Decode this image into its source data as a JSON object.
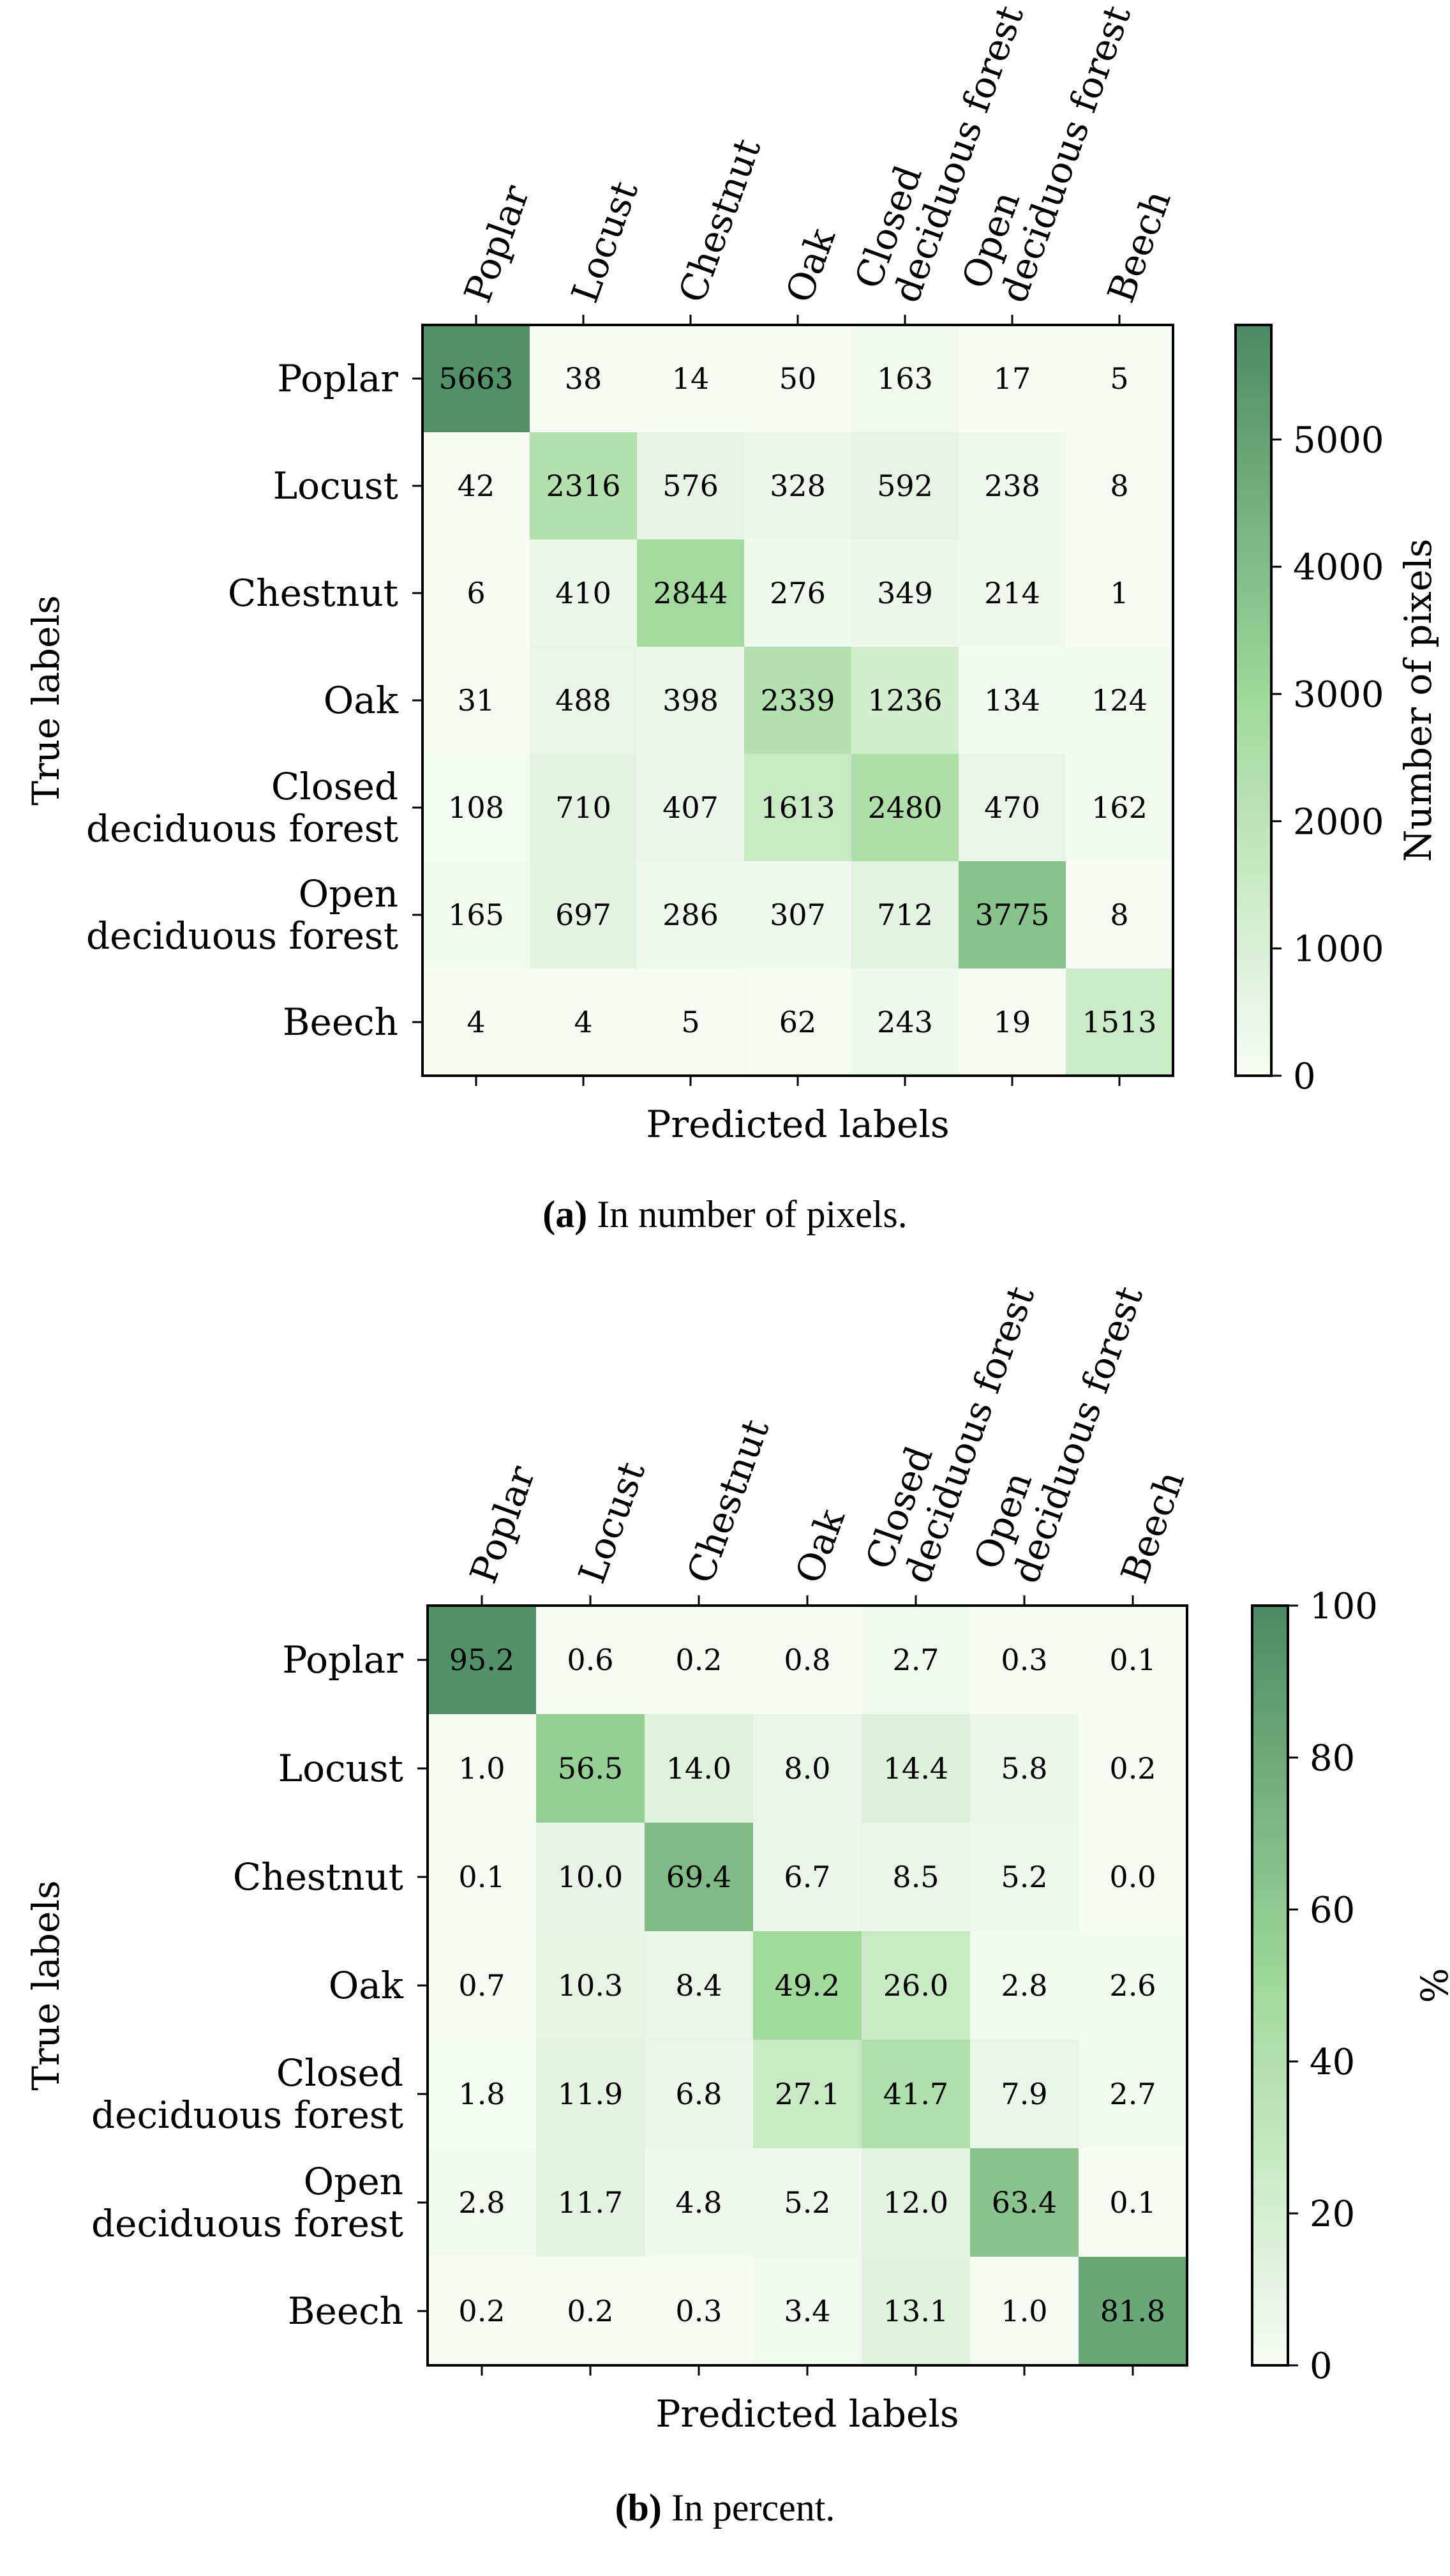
{
  "chart_data": [
    {
      "type": "heatmap",
      "caption_label": "(a)",
      "caption_text": "In number of pixels.",
      "xlabel": "Predicted labels",
      "ylabel": "True labels",
      "column_labels": [
        [
          "Poplar"
        ],
        [
          "Locust"
        ],
        [
          "Chestnut"
        ],
        [
          "Oak"
        ],
        [
          "Closed",
          "deciduous forest"
        ],
        [
          "Open",
          "deciduous forest"
        ],
        [
          "Beech"
        ]
      ],
      "row_labels": [
        [
          "Poplar"
        ],
        [
          "Locust"
        ],
        [
          "Chestnut"
        ],
        [
          "Oak"
        ],
        [
          "Closed",
          "deciduous forest"
        ],
        [
          "Open",
          "deciduous forest"
        ],
        [
          "Beech"
        ]
      ],
      "values": [
        [
          5663,
          38,
          14,
          50,
          163,
          17,
          5
        ],
        [
          42,
          2316,
          576,
          328,
          592,
          238,
          8
        ],
        [
          6,
          410,
          2844,
          276,
          349,
          214,
          1
        ],
        [
          31,
          488,
          398,
          2339,
          1236,
          134,
          124
        ],
        [
          108,
          710,
          407,
          1613,
          2480,
          470,
          162
        ],
        [
          165,
          697,
          286,
          307,
          712,
          3775,
          8
        ],
        [
          4,
          4,
          5,
          62,
          243,
          19,
          1513
        ]
      ],
      "cell_text": [
        [
          "5663",
          "38",
          "14",
          "50",
          "163",
          "17",
          "5"
        ],
        [
          "42",
          "2316",
          "576",
          "328",
          "592",
          "238",
          "8"
        ],
        [
          "6",
          "410",
          "2844",
          "276",
          "349",
          "214",
          "1"
        ],
        [
          "31",
          "488",
          "398",
          "2339",
          "1236",
          "134",
          "124"
        ],
        [
          "108",
          "710",
          "407",
          "1613",
          "2480",
          "470",
          "162"
        ],
        [
          "165",
          "697",
          "286",
          "307",
          "712",
          "3775",
          "8"
        ],
        [
          "4",
          "4",
          "5",
          "62",
          "243",
          "19",
          "1513"
        ]
      ],
      "colorbar": {
        "label": "Number of pixels",
        "min": 0,
        "max": 5900,
        "ticks": [
          0,
          1000,
          2000,
          3000,
          4000,
          5000
        ],
        "tick_labels": [
          "0",
          "1000",
          "2000",
          "3000",
          "4000",
          "5000"
        ]
      }
    },
    {
      "type": "heatmap",
      "caption_label": "(b)",
      "caption_text": "In percent.",
      "xlabel": "Predicted labels",
      "ylabel": "True labels",
      "column_labels": [
        [
          "Poplar"
        ],
        [
          "Locust"
        ],
        [
          "Chestnut"
        ],
        [
          "Oak"
        ],
        [
          "Closed",
          "deciduous forest"
        ],
        [
          "Open",
          "deciduous forest"
        ],
        [
          "Beech"
        ]
      ],
      "row_labels": [
        [
          "Poplar"
        ],
        [
          "Locust"
        ],
        [
          "Chestnut"
        ],
        [
          "Oak"
        ],
        [
          "Closed",
          "deciduous forest"
        ],
        [
          "Open",
          "deciduous forest"
        ],
        [
          "Beech"
        ]
      ],
      "values": [
        [
          95.2,
          0.6,
          0.2,
          0.8,
          2.7,
          0.3,
          0.1
        ],
        [
          1.0,
          56.5,
          14.0,
          8.0,
          14.4,
          5.8,
          0.2
        ],
        [
          0.1,
          10.0,
          69.4,
          6.7,
          8.5,
          5.2,
          0.0
        ],
        [
          0.7,
          10.3,
          8.4,
          49.2,
          26.0,
          2.8,
          2.6
        ],
        [
          1.8,
          11.9,
          6.8,
          27.1,
          41.7,
          7.9,
          2.7
        ],
        [
          2.8,
          11.7,
          4.8,
          5.2,
          12.0,
          63.4,
          0.1
        ],
        [
          0.2,
          0.2,
          0.3,
          3.4,
          13.1,
          1.0,
          81.8
        ]
      ],
      "cell_text": [
        [
          "95.2",
          "0.6",
          "0.2",
          "0.8",
          "2.7",
          "0.3",
          "0.1"
        ],
        [
          "1.0",
          "56.5",
          "14.0",
          "8.0",
          "14.4",
          "5.8",
          "0.2"
        ],
        [
          "0.1",
          "10.0",
          "69.4",
          "6.7",
          "8.5",
          "5.2",
          "0.0"
        ],
        [
          "0.7",
          "10.3",
          "8.4",
          "49.2",
          "26.0",
          "2.8",
          "2.6"
        ],
        [
          "1.8",
          "11.9",
          "6.8",
          "27.1",
          "41.7",
          "7.9",
          "2.7"
        ],
        [
          "2.8",
          "11.7",
          "4.8",
          "5.2",
          "12.0",
          "63.4",
          "0.1"
        ],
        [
          "0.2",
          "0.2",
          "0.3",
          "3.4",
          "13.1",
          "1.0",
          "81.8"
        ]
      ],
      "colorbar": {
        "label": "%",
        "min": 0,
        "max": 100,
        "ticks": [
          0,
          20,
          40,
          60,
          80,
          100
        ],
        "tick_labels": [
          "0",
          "20",
          "40",
          "60",
          "80",
          "100"
        ]
      }
    }
  ],
  "colors": {
    "low": "#f7fcf5",
    "mid": "#a1d99b",
    "high": "#4b8a64",
    "border": "#000000"
  }
}
